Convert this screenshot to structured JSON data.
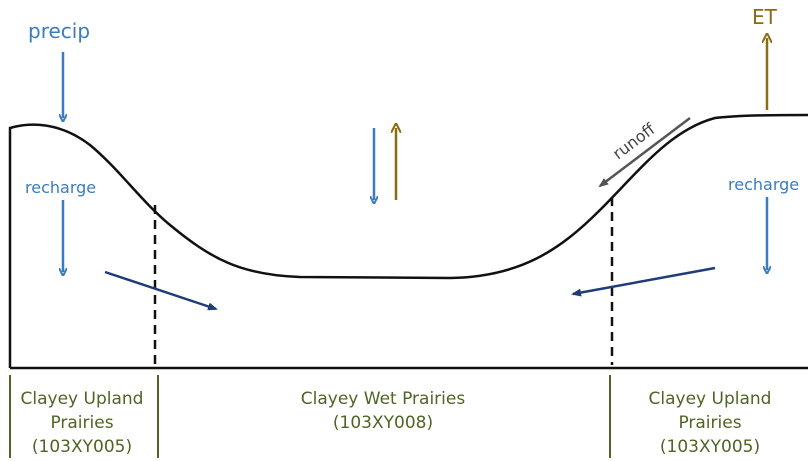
{
  "labels": {
    "precip": "precip",
    "et": "ET",
    "runoff": "runoff",
    "recharge_left": "recharge",
    "recharge_right": "recharge"
  },
  "sections": [
    {
      "lines": [
        "Clayey Upland",
        "Prairies",
        "(103XY005)"
      ]
    },
    {
      "lines": [
        "Clayey Wet Prairies",
        "(103XY008)"
      ]
    },
    {
      "lines": [
        "Clayey Upland",
        "Prairies",
        "(103XY005)"
      ]
    }
  ]
}
